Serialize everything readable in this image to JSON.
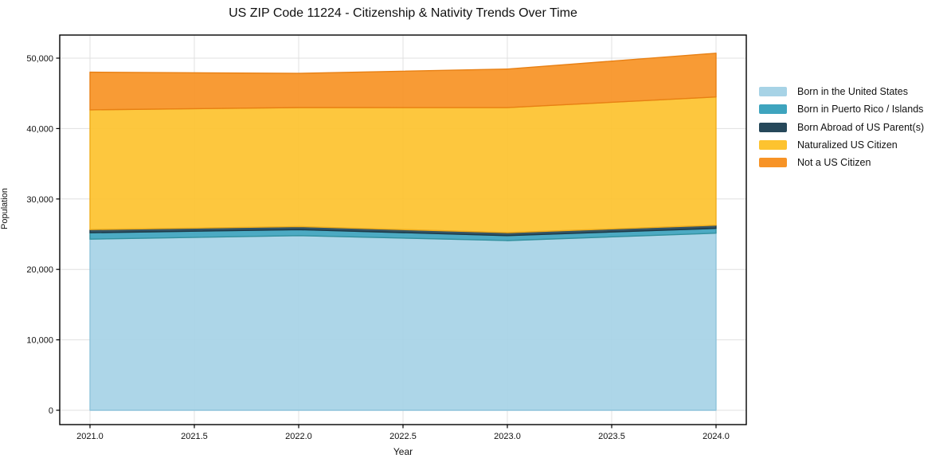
{
  "chart_data": {
    "type": "area",
    "stacked": true,
    "title": "US ZIP Code 11224 - Citizenship & Nativity Trends Over Time",
    "xlabel": "Year",
    "ylabel": "Population",
    "x": [
      2021.0,
      2022.0,
      2023.0,
      2024.0
    ],
    "xlim": [
      2020.855,
      2024.145
    ],
    "ylim": [
      -2036,
      53280
    ],
    "grid": true,
    "legend_position": "right-outside",
    "x_ticks": [
      {
        "v": 2021.0,
        "label": "2021.0"
      },
      {
        "v": 2021.5,
        "label": "2021.5"
      },
      {
        "v": 2022.0,
        "label": "2022.0"
      },
      {
        "v": 2022.5,
        "label": "2022.5"
      },
      {
        "v": 2023.0,
        "label": "2023.0"
      },
      {
        "v": 2023.5,
        "label": "2023.5"
      },
      {
        "v": 2024.0,
        "label": "2024.0"
      }
    ],
    "y_ticks": [
      {
        "v": 0,
        "label": "0"
      },
      {
        "v": 10000,
        "label": "10,000"
      },
      {
        "v": 20000,
        "label": "20,000"
      },
      {
        "v": 30000,
        "label": "30,000"
      },
      {
        "v": 40000,
        "label": "40,000"
      },
      {
        "v": 50000,
        "label": "50,000"
      }
    ],
    "series": [
      {
        "name": "Born in the United States",
        "color": "#A7D3E6",
        "edge_color": "#8FC4DB",
        "values": [
          24300,
          24800,
          24100,
          25150
        ]
      },
      {
        "name": "Born in Puerto Rico / Islands",
        "color": "#3EA4BE",
        "edge_color": "#33919F",
        "values": [
          900,
          840,
          700,
          680
        ]
      },
      {
        "name": "Born Abroad of US Parent(s)",
        "color": "#26485A",
        "edge_color": "#1C3A49",
        "values": [
          460,
          450,
          430,
          450
        ]
      },
      {
        "name": "Naturalized US Citizen",
        "color": "#FDC32F",
        "edge_color": "#EFAD1C",
        "values": [
          17000,
          16900,
          17750,
          18210
        ]
      },
      {
        "name": "Not a US Citizen",
        "color": "#F79326",
        "edge_color": "#E88014",
        "values": [
          5350,
          4850,
          5470,
          6210
        ]
      }
    ],
    "totals": [
      48010,
      47840,
      48450,
      50700
    ],
    "axis_color": "#000000",
    "grid_color": "#e0e0e0",
    "text_color": "#111111",
    "background_color": "#ffffff"
  }
}
